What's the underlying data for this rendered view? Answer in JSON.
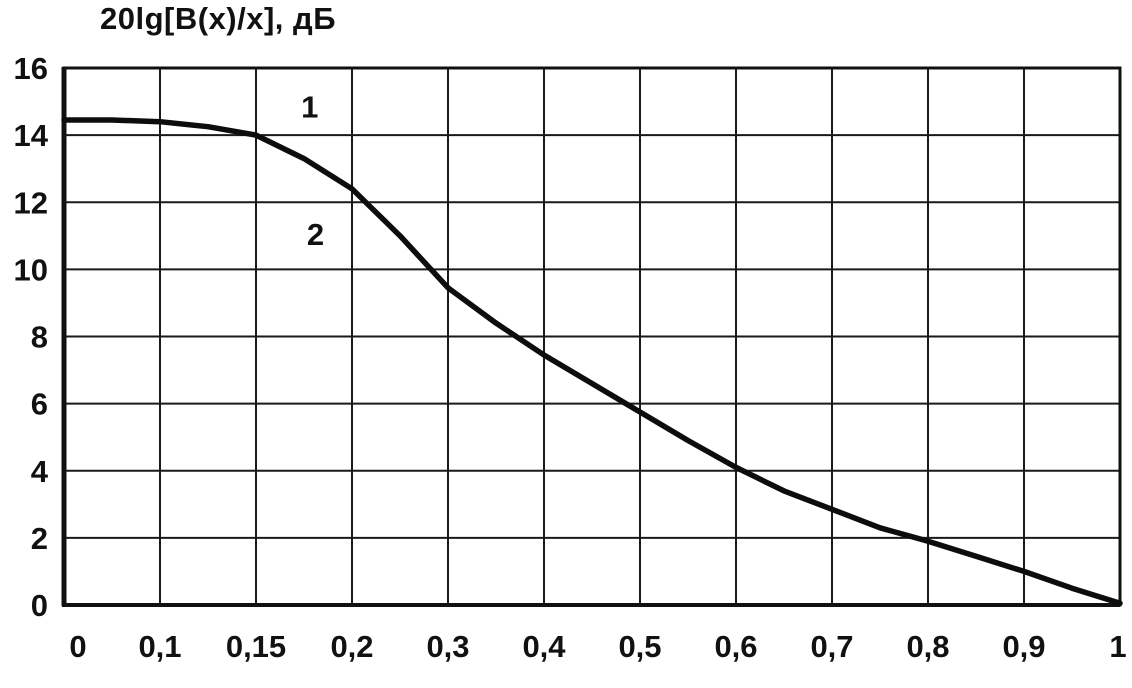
{
  "title": "20lg[B(x)/x], дБ",
  "colors": {
    "background": "#ffffff",
    "grid": "#1a1a1a",
    "frame": "#111111",
    "curve": "#0d0d0d",
    "text": "#111111"
  },
  "chart_data": {
    "type": "line",
    "title": "20lg[B(x)/x], дБ",
    "xlabel": "",
    "ylabel": "20lg[B(x)/x], дБ",
    "grid": true,
    "x_tick_labels": [
      "0",
      "0,1",
      "0,15",
      "0,2",
      "0,3",
      "0,4",
      "0,5",
      "0,6",
      "0,7",
      "0,8",
      "0,9",
      "1"
    ],
    "x_axis_note": "tick marks are equally spaced on the axis (non-linear scale between 0,1 and 0,2)",
    "y_ticks": [
      0,
      2,
      4,
      6,
      8,
      10,
      12,
      14,
      16
    ],
    "ylim": [
      0,
      16
    ],
    "series": [
      {
        "name": "curve",
        "points": [
          [
            0,
            14.45
          ],
          [
            0.05,
            14.45
          ],
          [
            0.1,
            14.4
          ],
          [
            0.125,
            14.25
          ],
          [
            0.15,
            14.0
          ],
          [
            0.175,
            13.3
          ],
          [
            0.2,
            12.4
          ],
          [
            0.25,
            11.0
          ],
          [
            0.3,
            9.45
          ],
          [
            0.35,
            8.4
          ],
          [
            0.4,
            7.45
          ],
          [
            0.45,
            6.6
          ],
          [
            0.5,
            5.75
          ],
          [
            0.55,
            4.9
          ],
          [
            0.6,
            4.1
          ],
          [
            0.65,
            3.4
          ],
          [
            0.7,
            2.85
          ],
          [
            0.75,
            2.3
          ],
          [
            0.8,
            1.9
          ],
          [
            0.85,
            1.45
          ],
          [
            0.9,
            1.0
          ],
          [
            0.95,
            0.5
          ],
          [
            1.0,
            0.05
          ]
        ]
      }
    ],
    "annotations": [
      {
        "text": "1",
        "x": 0.178,
        "y": 14.85
      },
      {
        "text": "2",
        "x": 0.181,
        "y": 11.05
      }
    ]
  }
}
